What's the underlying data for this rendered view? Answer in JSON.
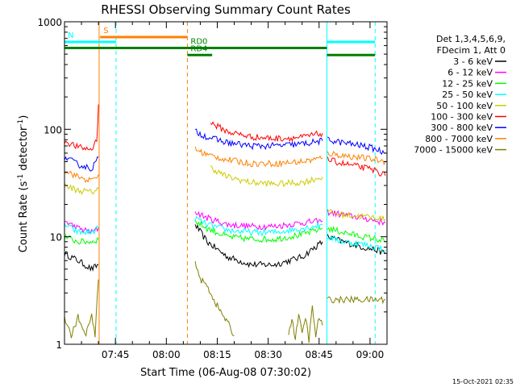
{
  "chart_data": {
    "type": "line",
    "title": "RHESSI Observing Summary Count Rates",
    "xlabel": "Start Time (06-Aug-08 07:30:02)",
    "ylabel_main": "Count Rate (s",
    "ylabel_sup1": "-1",
    "ylabel_mid": " detector",
    "ylabel_sup2": "-1",
    "ylabel_end": ")",
    "yscale": "log",
    "ylim": [
      1,
      1000
    ],
    "xlim_minutes": [
      0,
      95
    ],
    "x_ticks": [
      {
        "minute": 15,
        "label": "07:45"
      },
      {
        "minute": 30,
        "label": "08:00"
      },
      {
        "minute": 45,
        "label": "08:15"
      },
      {
        "minute": 60,
        "label": "08:30"
      },
      {
        "minute": 75,
        "label": "08:45"
      },
      {
        "minute": 90,
        "label": "09:00"
      }
    ],
    "y_ticks": [
      {
        "value": 1,
        "label": "1"
      },
      {
        "value": 10,
        "label": "10"
      },
      {
        "value": 100,
        "label": "100"
      },
      {
        "value": 1000,
        "label": "1000"
      }
    ],
    "legend": {
      "placement": "right",
      "header": [
        "Det 1,3,4,5,6,9,",
        "FDecim 1, Att 0"
      ]
    },
    "series": [
      {
        "name": "3 - 6 keV",
        "color": "#000000",
        "segments": [
          {
            "x": [
              0,
              4,
              8,
              10
            ],
            "y": [
              7,
              6,
              5,
              5.5
            ]
          },
          {
            "x": [
              38.5,
              42,
              48,
              55,
              62,
              70,
              76
            ],
            "y": [
              13,
              9,
              6.5,
              5.5,
              5.5,
              6.5,
              9
            ]
          },
          {
            "x": [
              77.5,
              82,
              88,
              92,
              94.5
            ],
            "y": [
              10,
              9,
              8,
              7.5,
              7
            ]
          }
        ]
      },
      {
        "name": "6 - 12 keV",
        "color": "#ff00ff",
        "segments": [
          {
            "x": [
              0,
              4,
              8,
              10
            ],
            "y": [
              14,
              12,
              11,
              12
            ]
          },
          {
            "x": [
              38.5,
              42,
              48,
              55,
              62,
              70,
              76
            ],
            "y": [
              17,
              15,
              13,
              12.5,
              12.5,
              13.5,
              14
            ]
          },
          {
            "x": [
              77.5,
              82,
              88,
              92,
              94.5
            ],
            "y": [
              17,
              16,
              15,
              14,
              13.5
            ]
          }
        ]
      },
      {
        "name": "12 - 25 keV",
        "color": "#00ff00",
        "segments": [
          {
            "x": [
              0,
              4,
              8,
              10
            ],
            "y": [
              10,
              9,
              9,
              9.5
            ]
          },
          {
            "x": [
              38.5,
              42,
              48,
              55,
              62,
              70,
              76
            ],
            "y": [
              14,
              12,
              10,
              9.5,
              9.5,
              10.5,
              12
            ]
          },
          {
            "x": [
              77.5,
              82,
              88,
              92,
              94.5
            ],
            "y": [
              12,
              11,
              10,
              9.5,
              9
            ]
          }
        ]
      },
      {
        "name": "25 - 50 keV",
        "color": "#00ffff",
        "segments": [
          {
            "x": [
              0,
              4,
              8,
              10
            ],
            "y": [
              13,
              11,
              11,
              12
            ]
          },
          {
            "x": [
              38.5,
              42,
              48,
              55,
              62,
              70,
              76
            ],
            "y": [
              15,
              13,
              11.5,
              11,
              11,
              12,
              13
            ]
          },
          {
            "x": [
              77.5,
              82,
              88,
              92,
              94.5
            ],
            "y": [
              10,
              9,
              8.5,
              8,
              7.5
            ]
          }
        ]
      },
      {
        "name": "50 - 100 keV",
        "color": "#cccc00",
        "segments": [
          {
            "x": [
              0,
              4,
              8,
              10
            ],
            "y": [
              30,
              27,
              26,
              28
            ]
          },
          {
            "x": [
              43,
              48,
              55,
              62,
              70,
              76
            ],
            "y": [
              44,
              36,
              32,
              31,
              32,
              36
            ]
          },
          {
            "x": [
              77.5,
              82,
              88,
              92,
              94.5
            ],
            "y": [
              17,
              16,
              15.5,
              15,
              14.5
            ]
          }
        ]
      },
      {
        "name": "100 - 300 keV",
        "color": "#ff0000",
        "segments": [
          {
            "x": [
              0,
              4,
              8,
              9.5,
              10
            ],
            "y": [
              78,
              68,
              65,
              80,
              170
            ]
          },
          {
            "x": [
              43,
              48,
              55,
              62,
              70,
              76
            ],
            "y": [
              115,
              95,
              85,
              82,
              84,
              92
            ]
          },
          {
            "x": [
              77.5,
              82,
              88,
              92,
              94.5
            ],
            "y": [
              52,
              48,
              44,
              41,
              37
            ]
          }
        ]
      },
      {
        "name": "300 - 800 keV",
        "color": "#0000ff",
        "segments": [
          {
            "x": [
              0,
              4,
              8,
              10
            ],
            "y": [
              55,
              47,
              43,
              55
            ]
          },
          {
            "x": [
              38.5,
              42,
              48,
              55,
              62,
              70,
              76
            ],
            "y": [
              95,
              85,
              75,
              70,
              70,
              73,
              78
            ]
          },
          {
            "x": [
              77.5,
              82,
              88,
              92,
              94.5
            ],
            "y": [
              80,
              75,
              70,
              65,
              60
            ]
          }
        ]
      },
      {
        "name": "800 - 7000 keV",
        "color": "#ff8000",
        "segments": [
          {
            "x": [
              0,
              4,
              8,
              10
            ],
            "y": [
              42,
              36,
              33,
              38
            ]
          },
          {
            "x": [
              38.5,
              42,
              48,
              55,
              62,
              70,
              76
            ],
            "y": [
              65,
              58,
              52,
              48,
              48,
              50,
              54
            ]
          },
          {
            "x": [
              77.5,
              82,
              88,
              92,
              94.5
            ],
            "y": [
              60,
              57,
              54,
              52,
              50
            ]
          }
        ]
      },
      {
        "name": "7000 - 15000 keV",
        "color": "#808000",
        "segments": [
          {
            "x": [
              0,
              2,
              4,
              6,
              8,
              9,
              10
            ],
            "y": [
              1.8,
              1.2,
              1.8,
              1.2,
              1.8,
              1.2,
              4
            ]
          },
          {
            "x": [
              38.5,
              40,
              42,
              44,
              46,
              48,
              50
            ],
            "y": [
              6,
              4,
              3.5,
              2.6,
              2,
              1.6,
              1.2
            ]
          },
          {
            "x": [
              66,
              67,
              68,
              69,
              70,
              71,
              72,
              73,
              74,
              75,
              76
            ],
            "y": [
              1.2,
              1.8,
              1.1,
              2,
              1.2,
              1.8,
              1.1,
              2.2,
              1.2,
              1.8,
              1.5
            ]
          },
          {
            "x": [
              77.5,
              82,
              88,
              92,
              94.5
            ],
            "y": [
              2.6,
              2.6,
              2.6,
              2.6,
              2.6
            ]
          }
        ]
      }
    ],
    "vertical_lines": [
      {
        "minute": 0,
        "color": "#00ffff",
        "style": "solid"
      },
      {
        "minute": 10.2,
        "color": "#ff8000",
        "style": "solid"
      },
      {
        "minute": 15.2,
        "color": "#00ffff",
        "style": "dashed"
      },
      {
        "minute": 36.2,
        "color": "#ff8000",
        "style": "dashed"
      },
      {
        "minute": 77.3,
        "color": "#00ffff",
        "style": "solid"
      },
      {
        "minute": 91.5,
        "color": "#00ffff",
        "style": "dashed"
      }
    ],
    "state_bars": [
      {
        "label": "S",
        "color": "#ff8000",
        "x0": 10.5,
        "x1": 36.2,
        "y": 720
      },
      {
        "label": "N",
        "color": "#00ffff",
        "x0": 0,
        "x1": 15.2,
        "y": 650
      },
      {
        "label": "",
        "color": "#00ffff",
        "x0": 77.3,
        "x1": 91.5,
        "y": 650
      },
      {
        "label": "",
        "color": "#008000",
        "x0": 0,
        "x1": 36.2,
        "y": 570
      },
      {
        "label": "RD0",
        "color": "#008000",
        "x0": 36.2,
        "x1": 77.3,
        "y": 570
      },
      {
        "label": "",
        "color": "#008000",
        "x0": 77.3,
        "x1": 91.5,
        "y": 490
      },
      {
        "label": "RD4",
        "color": "#008000",
        "x0": 36.2,
        "x1": 43.5,
        "y": 490
      }
    ],
    "footer_date": "15-Oct-2021 02:35"
  }
}
